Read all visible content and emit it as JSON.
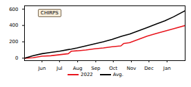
{
  "chart_data": {
    "type": "line",
    "annotation": "CHIRPS",
    "x": [
      15,
      30,
      45,
      60,
      75,
      90,
      95,
      105,
      120,
      135,
      150,
      165,
      180,
      185,
      195,
      210,
      225,
      240,
      255,
      270,
      290
    ],
    "series": [
      {
        "name": "2022",
        "color": "#e8141c",
        "values": [
          0,
          5,
          25,
          30,
          42,
          55,
          85,
          90,
          100,
          115,
          125,
          140,
          150,
          180,
          190,
          230,
          270,
          300,
          330,
          360,
          400
        ]
      },
      {
        "name": "Avg.",
        "color": "#000000",
        "values": [
          0,
          30,
          55,
          70,
          85,
          105,
          110,
          125,
          150,
          175,
          200,
          230,
          265,
          275,
          295,
          335,
          375,
          415,
          455,
          505,
          580
        ]
      }
    ],
    "xlim": [
      15,
      290
    ],
    "xticks": [
      {
        "value": 45,
        "label": "Jun"
      },
      {
        "value": 75,
        "label": "Jul"
      },
      {
        "value": 106,
        "label": "Aug"
      },
      {
        "value": 137,
        "label": "Sep"
      },
      {
        "value": 167,
        "label": "Oct"
      },
      {
        "value": 198,
        "label": "Nov"
      },
      {
        "value": 228,
        "label": "Dec"
      },
      {
        "value": 259,
        "label": "Jan"
      }
    ],
    "ylim": [
      -30,
      640
    ],
    "yticks": [
      0,
      200,
      400,
      600
    ],
    "grid": false,
    "legend": "bottom"
  }
}
